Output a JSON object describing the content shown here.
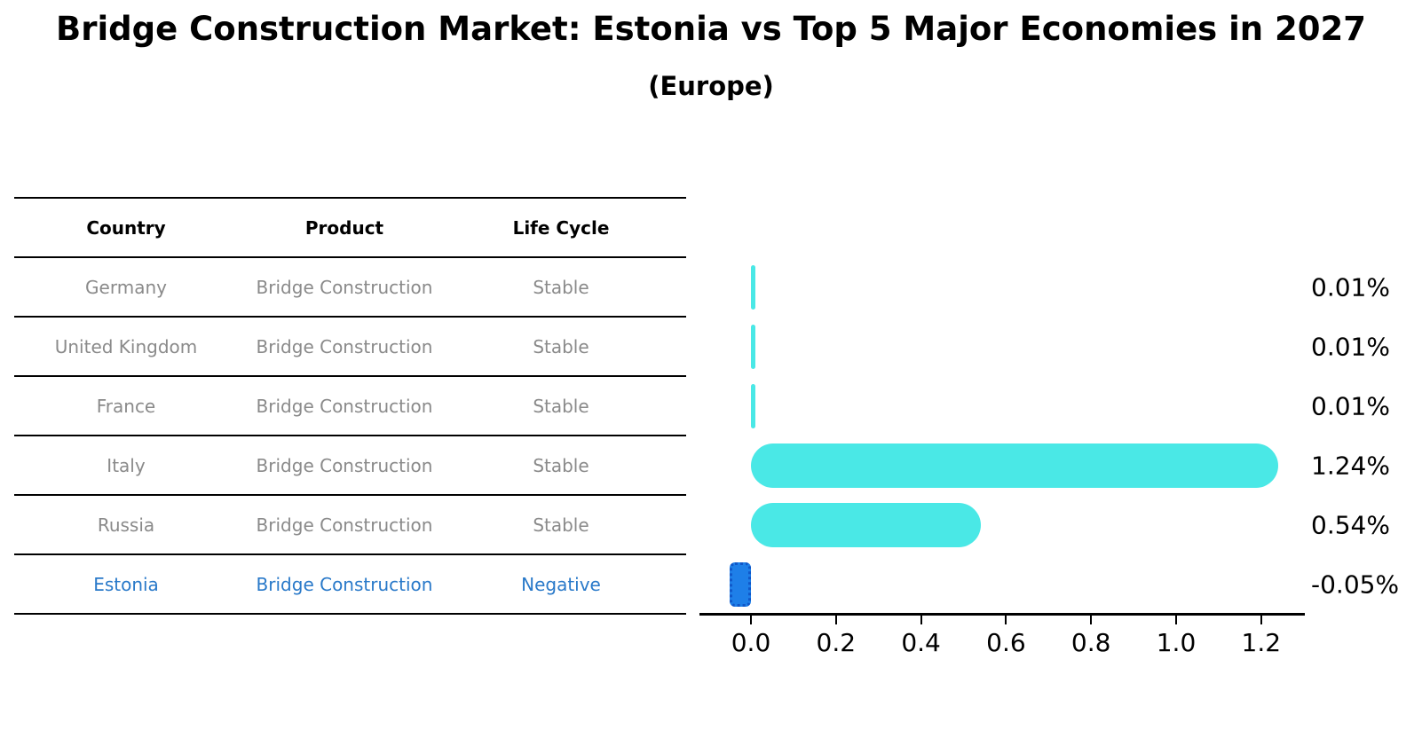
{
  "header": {
    "title": "Bridge Construction Market: Estonia vs Top 5 Major Economies in 2027",
    "subtitle": "(Europe)"
  },
  "table": {
    "headers": [
      "Country",
      "Product",
      "Life Cycle"
    ],
    "rows": [
      {
        "country": "Germany",
        "product": "Bridge Construction",
        "life_cycle": "Stable",
        "highlight": false
      },
      {
        "country": "United Kingdom",
        "product": "Bridge Construction",
        "life_cycle": "Stable",
        "highlight": false
      },
      {
        "country": "France",
        "product": "Bridge Construction",
        "life_cycle": "Stable",
        "highlight": false
      },
      {
        "country": "Italy",
        "product": "Bridge Construction",
        "life_cycle": "Stable",
        "highlight": false
      },
      {
        "country": "Russia",
        "product": "Bridge Construction",
        "life_cycle": "Stable",
        "highlight": false
      },
      {
        "country": "Estonia",
        "product": "Bridge Construction",
        "life_cycle": "Negative",
        "highlight": true
      }
    ]
  },
  "chart_data": {
    "type": "bar",
    "orientation": "horizontal",
    "title": "Bridge Construction Market: Estonia vs Top 5 Major Economies in 2027",
    "subtitle": "(Europe)",
    "categories": [
      "Germany",
      "United Kingdom",
      "France",
      "Italy",
      "Russia",
      "Estonia"
    ],
    "values": [
      0.01,
      0.01,
      0.01,
      1.24,
      0.54,
      -0.05
    ],
    "value_labels": [
      "0.01%",
      "0.01%",
      "0.01%",
      "1.24%",
      "0.54%",
      "-0.05%"
    ],
    "highlight_category": "Estonia",
    "xticks": [
      "0.0",
      "0.2",
      "0.4",
      "0.6",
      "0.8",
      "1.0",
      "1.2"
    ],
    "xtick_values": [
      0.0,
      0.2,
      0.4,
      0.6,
      0.8,
      1.0,
      1.2
    ],
    "xlim": [
      -0.12,
      1.3
    ],
    "xlabel": "",
    "ylabel": "",
    "grid": false,
    "legend": false
  },
  "colors": {
    "bar_default": "#4ae8e6",
    "bar_highlight": "#1e7fe8",
    "bar_highlight_border": "#1057c8",
    "table_text": "#8a8a8a",
    "table_header_text": "#000000",
    "highlight_text": "#2979c9",
    "axis_text": "#000000",
    "background": "#ffffff"
  }
}
